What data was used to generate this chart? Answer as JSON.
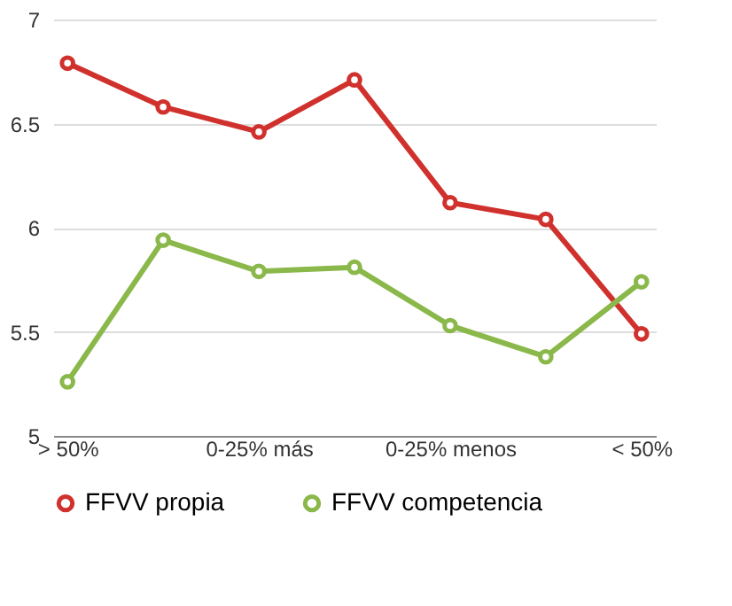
{
  "chart_data": {
    "type": "line",
    "categories": [
      "> 50%",
      null,
      "0-25% más",
      null,
      "0-25% menos",
      null,
      "< 50%"
    ],
    "series": [
      {
        "name": "FFVV propia",
        "color": "#d0312d",
        "values": [
          6.79,
          6.58,
          6.46,
          6.71,
          6.12,
          6.04,
          5.49
        ]
      },
      {
        "name": "FFVV competencia",
        "color": "#8ab84a",
        "values": [
          5.26,
          5.94,
          5.79,
          5.81,
          5.53,
          5.38,
          5.74
        ]
      }
    ],
    "ylim": [
      5,
      7
    ],
    "yticks": [
      5,
      5.5,
      6,
      6.5,
      7
    ],
    "grid": "y",
    "legend": "bottom",
    "marker": "circle",
    "line_style": "solid"
  }
}
